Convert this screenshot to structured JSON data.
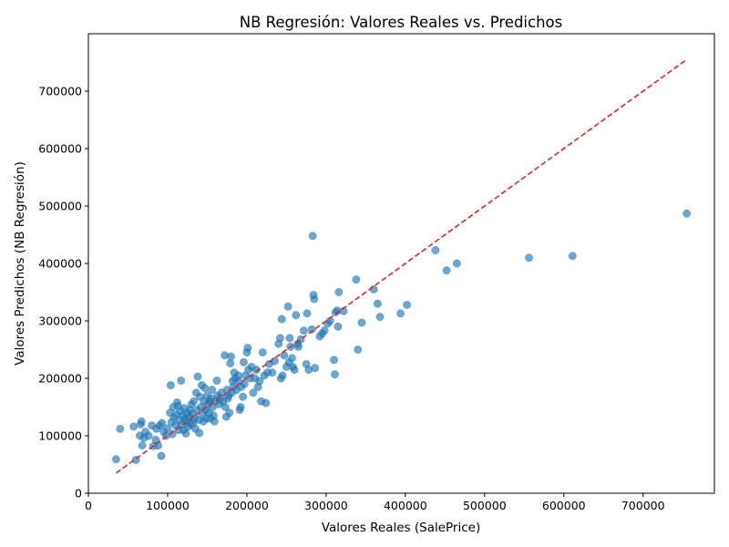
{
  "chart_data": {
    "type": "scatter",
    "title": "NB Regresión: Valores Reales vs. Predichos",
    "xlabel": "Valores Reales (SalePrice)",
    "ylabel": "Valores Predichos (NB Regresión)",
    "xlim": [
      0,
      790000
    ],
    "ylim": [
      0,
      800000
    ],
    "xticks": [
      0,
      100000,
      200000,
      300000,
      400000,
      500000,
      600000,
      700000
    ],
    "yticks": [
      0,
      100000,
      200000,
      300000,
      400000,
      500000,
      600000,
      700000
    ],
    "grid": false,
    "point_color": "#1f77b4",
    "line_color": "#d62728",
    "reference_line": {
      "style": "dashed",
      "x": [
        35000,
        755000
      ],
      "y": [
        35000,
        755000
      ]
    },
    "series": [
      {
        "values": [
          [
            35000,
            59000
          ],
          [
            40000,
            112000
          ],
          [
            57000,
            116000
          ],
          [
            60000,
            58000
          ],
          [
            65000,
            100000
          ],
          [
            66000,
            120000
          ],
          [
            67000,
            125000
          ],
          [
            68000,
            83000
          ],
          [
            70000,
            96000
          ],
          [
            72000,
            107000
          ],
          [
            76000,
            100000
          ],
          [
            80000,
            118000
          ],
          [
            82000,
            82000
          ],
          [
            85000,
            93000
          ],
          [
            86000,
            112000
          ],
          [
            88000,
            83000
          ],
          [
            90000,
            118000
          ],
          [
            92000,
            65000
          ],
          [
            93000,
            122000
          ],
          [
            95000,
            107000
          ],
          [
            98000,
            100000
          ],
          [
            100000,
            113000
          ],
          [
            103000,
            140000
          ],
          [
            104000,
            188000
          ],
          [
            105000,
            124000
          ],
          [
            106000,
            103000
          ],
          [
            107000,
            150000
          ],
          [
            108000,
            132000
          ],
          [
            110000,
            118000
          ],
          [
            111000,
            137000
          ],
          [
            112000,
            158000
          ],
          [
            113000,
            152000
          ],
          [
            114000,
            110000
          ],
          [
            115000,
            127000
          ],
          [
            116000,
            143000
          ],
          [
            117000,
            196000
          ],
          [
            118000,
            120000
          ],
          [
            119000,
            135000
          ],
          [
            120000,
            110000
          ],
          [
            121000,
            148000
          ],
          [
            122000,
            130000
          ],
          [
            123000,
            104000
          ],
          [
            124000,
            125000
          ],
          [
            125000,
            140000
          ],
          [
            126000,
            116000
          ],
          [
            127000,
            133000
          ],
          [
            128000,
            145000
          ],
          [
            129000,
            120000
          ],
          [
            130000,
            155000
          ],
          [
            131000,
            138000
          ],
          [
            132000,
            122000
          ],
          [
            133000,
            160000
          ],
          [
            134000,
            130000
          ],
          [
            135000,
            112000
          ],
          [
            136000,
            175000
          ],
          [
            137000,
            145000
          ],
          [
            138000,
            203000
          ],
          [
            139000,
            128000
          ],
          [
            140000,
            105000
          ],
          [
            141000,
            168000
          ],
          [
            142000,
            150000
          ],
          [
            143000,
            188000
          ],
          [
            144000,
            138000
          ],
          [
            145000,
            125000
          ],
          [
            146000,
            160000
          ],
          [
            147000,
            183000
          ],
          [
            148000,
            145000
          ],
          [
            149000,
            130000
          ],
          [
            150000,
            170000
          ],
          [
            151000,
            155000
          ],
          [
            152000,
            140000
          ],
          [
            153000,
            160000
          ],
          [
            154000,
            130000
          ],
          [
            155000,
            165000
          ],
          [
            156000,
            180000
          ],
          [
            157000,
            150000
          ],
          [
            158000,
            135000
          ],
          [
            159000,
            125000
          ],
          [
            160000,
            160000
          ],
          [
            162000,
            196000
          ],
          [
            163000,
            170000
          ],
          [
            165000,
            155000
          ],
          [
            166000,
            165000
          ],
          [
            168000,
            175000
          ],
          [
            170000,
            160000
          ],
          [
            172000,
            240000
          ],
          [
            173000,
            150000
          ],
          [
            174000,
            133000
          ],
          [
            175000,
            180000
          ],
          [
            176000,
            165000
          ],
          [
            177000,
            170000
          ],
          [
            178000,
            140000
          ],
          [
            179000,
            226000
          ],
          [
            180000,
            238000
          ],
          [
            181000,
            175000
          ],
          [
            182000,
            195000
          ],
          [
            183000,
            185000
          ],
          [
            184000,
            210000
          ],
          [
            185000,
            200000
          ],
          [
            187000,
            180000
          ],
          [
            189000,
            205000
          ],
          [
            190000,
            195000
          ],
          [
            191000,
            145000
          ],
          [
            192000,
            150000
          ],
          [
            193000,
            185000
          ],
          [
            195000,
            168000
          ],
          [
            196000,
            228000
          ],
          [
            197000,
            190000
          ],
          [
            198000,
            205000
          ],
          [
            200000,
            245000
          ],
          [
            201000,
            253000
          ],
          [
            202000,
            215000
          ],
          [
            204000,
            200000
          ],
          [
            206000,
            220000
          ],
          [
            208000,
            175000
          ],
          [
            210000,
            200000
          ],
          [
            212000,
            215000
          ],
          [
            214000,
            185000
          ],
          [
            216000,
            195000
          ],
          [
            218000,
            160000
          ],
          [
            220000,
            245000
          ],
          [
            222000,
            205000
          ],
          [
            224000,
            157000
          ],
          [
            226000,
            210000
          ],
          [
            228000,
            225000
          ],
          [
            232000,
            210000
          ],
          [
            235000,
            230000
          ],
          [
            240000,
            260000
          ],
          [
            242000,
            270000
          ],
          [
            243000,
            200000
          ],
          [
            244000,
            303000
          ],
          [
            245000,
            205000
          ],
          [
            247000,
            240000
          ],
          [
            250000,
            220000
          ],
          [
            252000,
            325000
          ],
          [
            253000,
            228000
          ],
          [
            254000,
            270000
          ],
          [
            255000,
            255000
          ],
          [
            257000,
            235000
          ],
          [
            258000,
            220000
          ],
          [
            260000,
            215000
          ],
          [
            262000,
            310000
          ],
          [
            264000,
            260000
          ],
          [
            265000,
            255000
          ],
          [
            268000,
            268000
          ],
          [
            272000,
            283000
          ],
          [
            275000,
            225000
          ],
          [
            276000,
            313000
          ],
          [
            278000,
            215000
          ],
          [
            282000,
            285000
          ],
          [
            283000,
            448000
          ],
          [
            284000,
            345000
          ],
          [
            285000,
            338000
          ],
          [
            286000,
            218000
          ],
          [
            292000,
            273000
          ],
          [
            295000,
            278000
          ],
          [
            298000,
            283000
          ],
          [
            302000,
            295000
          ],
          [
            305000,
            300000
          ],
          [
            310000,
            232000
          ],
          [
            311000,
            207000
          ],
          [
            312000,
            315000
          ],
          [
            314000,
            318000
          ],
          [
            315000,
            290000
          ],
          [
            316000,
            350000
          ],
          [
            322000,
            317000
          ],
          [
            338000,
            372000
          ],
          [
            340000,
            250000
          ],
          [
            345000,
            297000
          ],
          [
            360000,
            355000
          ],
          [
            365000,
            330000
          ],
          [
            368000,
            307000
          ],
          [
            394000,
            313000
          ],
          [
            402000,
            328000
          ],
          [
            438000,
            423000
          ],
          [
            452000,
            388000
          ],
          [
            465000,
            400000
          ],
          [
            556000,
            410000
          ],
          [
            611000,
            413000
          ],
          [
            755000,
            487000
          ]
        ]
      }
    ]
  }
}
